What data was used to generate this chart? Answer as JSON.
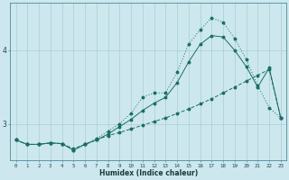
{
  "x": [
    0,
    1,
    2,
    3,
    4,
    5,
    6,
    7,
    8,
    9,
    10,
    11,
    12,
    13,
    14,
    15,
    16,
    17,
    18,
    19,
    20,
    21,
    22,
    23
  ],
  "line1": [
    2.78,
    2.72,
    2.72,
    2.74,
    2.73,
    2.66,
    2.72,
    2.78,
    2.84,
    2.88,
    2.93,
    2.98,
    3.03,
    3.08,
    3.14,
    3.2,
    3.27,
    3.34,
    3.42,
    3.5,
    3.58,
    3.66,
    3.74,
    3.08
  ],
  "line2": [
    2.78,
    2.72,
    2.72,
    2.74,
    2.73,
    2.64,
    2.72,
    2.78,
    2.86,
    2.96,
    3.06,
    3.18,
    3.28,
    3.36,
    3.56,
    3.84,
    4.08,
    4.2,
    4.18,
    4.0,
    3.78,
    3.5,
    3.76,
    3.08
  ],
  "line3": [
    2.78,
    2.72,
    2.72,
    2.74,
    2.73,
    2.64,
    2.72,
    2.8,
    2.9,
    3.0,
    3.14,
    3.36,
    3.42,
    3.42,
    3.7,
    4.08,
    4.28,
    4.44,
    4.38,
    4.16,
    3.88,
    3.52,
    3.22,
    3.08
  ],
  "bg_color": "#cce8ee",
  "grid_color": "#aaccd4",
  "line_color": "#1a6e64",
  "xlabel": "Humidex (Indice chaleur)",
  "ylim": [
    2.5,
    4.65
  ],
  "xlim": [
    -0.5,
    23.5
  ],
  "yticks": [
    3,
    4
  ],
  "xticks": [
    0,
    1,
    2,
    3,
    4,
    5,
    6,
    7,
    8,
    9,
    10,
    11,
    12,
    13,
    14,
    15,
    16,
    17,
    18,
    19,
    20,
    21,
    22,
    23
  ]
}
